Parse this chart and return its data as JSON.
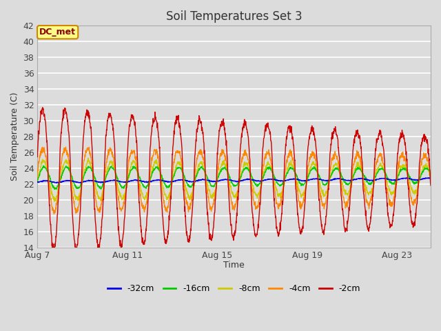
{
  "title": "Soil Temperatures Set 3",
  "xlabel": "Time",
  "ylabel": "Soil Temperature (C)",
  "ylim": [
    14,
    42
  ],
  "yticks": [
    14,
    16,
    18,
    20,
    22,
    24,
    26,
    28,
    30,
    32,
    34,
    36,
    38,
    40,
    42
  ],
  "xtick_labels": [
    "Aug 7",
    "Aug 11",
    "Aug 15",
    "Aug 19",
    "Aug 23"
  ],
  "xtick_positions": [
    0,
    4,
    8,
    12,
    16
  ],
  "legend_labels": [
    "-32cm",
    "-16cm",
    "-8cm",
    "-4cm",
    "-2cm"
  ],
  "line_colors": [
    "#0000ee",
    "#00cc00",
    "#cccc00",
    "#ff8800",
    "#cc0000"
  ],
  "annotation_text": "DC_met",
  "annotation_bg": "#ffff88",
  "annotation_border": "#cc8800",
  "bg_color": "#dcdcdc",
  "grid_color": "#ffffff",
  "n_days": 17.5,
  "points_per_day": 96,
  "figsize": [
    6.4,
    4.8
  ],
  "dpi": 100
}
